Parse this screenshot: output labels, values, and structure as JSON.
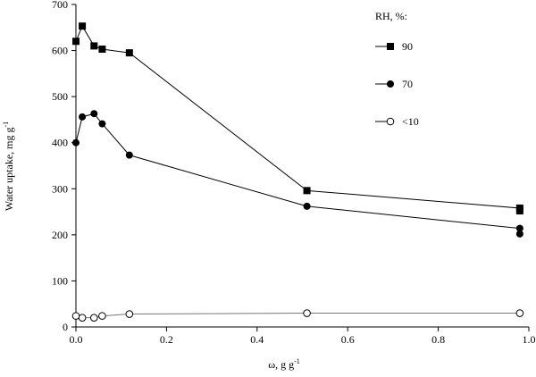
{
  "chart_data": {
    "type": "line",
    "title": "",
    "xlabel": "ω, g g",
    "xlabel_sup": "-1",
    "ylabel": "Water uptake, mg  g",
    "ylabel_sup": "-1",
    "xlim": [
      0,
      1.0
    ],
    "ylim": [
      0,
      700
    ],
    "xticks": [
      "0.0",
      "0.2",
      "0.4",
      "0.6",
      "0.8",
      "1.0"
    ],
    "yticks": [
      "0",
      "100",
      "200",
      "300",
      "400",
      "500",
      "600",
      "700"
    ],
    "grid": false,
    "legend_title": "RH, %:",
    "legend_position": "top-right",
    "series": [
      {
        "name": "90",
        "marker": "square-filled",
        "x": [
          0.0,
          0.014,
          0.04,
          0.058,
          0.118,
          0.51,
          0.98,
          0.98
        ],
        "y": [
          620,
          653,
          610,
          603,
          595,
          296,
          258,
          252
        ]
      },
      {
        "name": "70",
        "marker": "circle-filled",
        "x": [
          0.0,
          0.014,
          0.04,
          0.058,
          0.118,
          0.51,
          0.98,
          0.98
        ],
        "y": [
          400,
          456,
          463,
          441,
          373,
          262,
          214,
          202
        ]
      },
      {
        "name": "<10",
        "marker": "circle-open",
        "x": [
          0.0,
          0.014,
          0.04,
          0.058,
          0.118,
          0.51,
          0.98
        ],
        "y": [
          24,
          20,
          20,
          24,
          28,
          30,
          30
        ]
      }
    ]
  }
}
